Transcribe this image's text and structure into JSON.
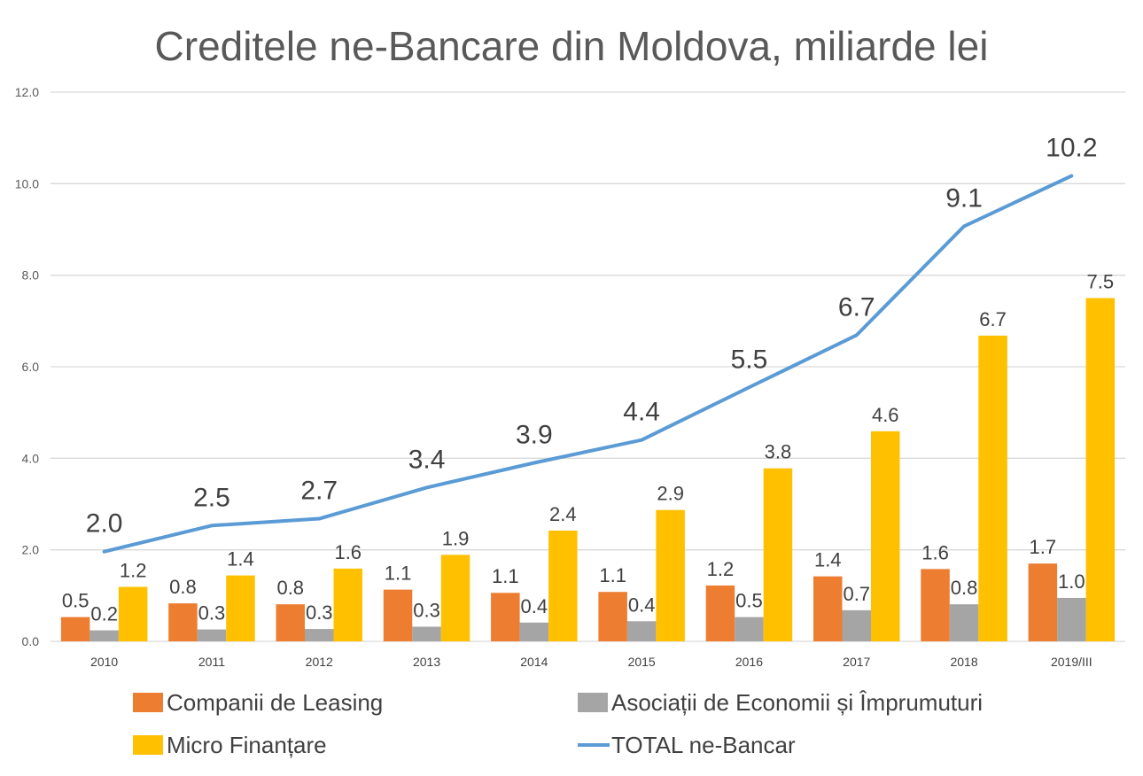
{
  "chart_data": {
    "type": "bar",
    "title": "Creditele ne-Bancare din Moldova, miliarde lei",
    "categories": [
      "2010",
      "2011",
      "2012",
      "2013",
      "2014",
      "2015",
      "2016",
      "2017",
      "2018",
      "2019/III"
    ],
    "ylim": [
      0,
      12
    ],
    "yticks": [
      "0.0",
      "2.0",
      "4.0",
      "6.0",
      "8.0",
      "10.0",
      "12.0"
    ],
    "grid": true,
    "legend_position": "bottom",
    "series": [
      {
        "name": "Companii de Leasing",
        "type": "bar",
        "color": "#ED7D31",
        "values": [
          0.53,
          0.83,
          0.81,
          1.13,
          1.06,
          1.08,
          1.22,
          1.42,
          1.58,
          1.7
        ],
        "labels": [
          "0.5",
          "0.8",
          "0.8",
          "1.1",
          "1.1",
          "1.1",
          "1.2",
          "1.4",
          "1.6",
          "1.7"
        ]
      },
      {
        "name": "Asociații de Economii și Împrumuturi",
        "type": "bar",
        "color": "#A5A5A5",
        "values": [
          0.24,
          0.26,
          0.27,
          0.32,
          0.41,
          0.44,
          0.53,
          0.68,
          0.81,
          0.95
        ],
        "labels": [
          "0.2",
          "0.3",
          "0.3",
          "0.3",
          "0.4",
          "0.4",
          "0.5",
          "0.7",
          "0.8",
          "1.0"
        ]
      },
      {
        "name": "Micro Finanțare",
        "type": "bar",
        "color": "#FFC000",
        "values": [
          1.19,
          1.44,
          1.59,
          1.89,
          2.42,
          2.87,
          3.78,
          4.59,
          6.68,
          7.5
        ],
        "labels": [
          "1.2",
          "1.4",
          "1.6",
          "1.9",
          "2.4",
          "2.9",
          "3.8",
          "4.6",
          "6.7",
          "7.5"
        ]
      },
      {
        "name": "TOTAL ne-Bancar",
        "type": "line",
        "color": "#5B9BD5",
        "values": [
          1.96,
          2.53,
          2.68,
          3.36,
          3.9,
          4.4,
          5.55,
          6.69,
          9.07,
          10.17
        ],
        "labels": [
          "2.0",
          "2.5",
          "2.7",
          "3.4",
          "3.9",
          "4.4",
          "5.5",
          "6.7",
          "9.1",
          "10.2"
        ]
      }
    ]
  }
}
